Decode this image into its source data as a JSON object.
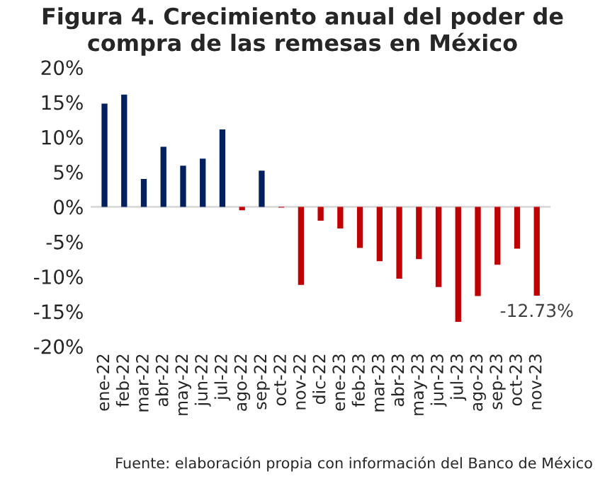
{
  "chart_data": {
    "type": "bar",
    "title": "Figura 4. Crecimiento anual del poder de compra de las remesas en México",
    "categories": [
      "ene-22",
      "feb-22",
      "mar-22",
      "abr-22",
      "may-22",
      "jun-22",
      "jul-22",
      "ago-22",
      "sep-22",
      "oct-22",
      "nov-22",
      "dic-22",
      "ene-23",
      "feb-23",
      "mar-23",
      "abr-23",
      "may-23",
      "jun-23",
      "jul-23",
      "ago-23",
      "sep-23",
      "oct-23",
      "nov-23"
    ],
    "values": [
      14.8,
      16.1,
      4.0,
      8.6,
      5.9,
      6.9,
      11.1,
      -0.5,
      5.2,
      -0.1,
      -11.2,
      -2.0,
      -3.1,
      -5.9,
      -7.8,
      -10.3,
      -7.5,
      -11.5,
      -16.5,
      -12.8,
      -8.3,
      -6.0,
      -12.73
    ],
    "colors": [
      "#002060",
      "#002060",
      "#002060",
      "#002060",
      "#002060",
      "#002060",
      "#002060",
      "#c00000",
      "#002060",
      "#c00000",
      "#c00000",
      "#c00000",
      "#c00000",
      "#c00000",
      "#c00000",
      "#c00000",
      "#c00000",
      "#c00000",
      "#c00000",
      "#c00000",
      "#c00000",
      "#c00000",
      "#c00000"
    ],
    "ylim": [
      -20,
      20
    ],
    "yticks": [
      {
        "value": -20,
        "label": "-20%"
      },
      {
        "value": -15,
        "label": "-15%"
      },
      {
        "value": -10,
        "label": "-10%"
      },
      {
        "value": -5,
        "label": "-5%"
      },
      {
        "value": 0,
        "label": "0%"
      },
      {
        "value": 5,
        "label": "5%"
      },
      {
        "value": 10,
        "label": "10%"
      },
      {
        "value": 15,
        "label": "15%"
      },
      {
        "value": 20,
        "label": "20%"
      }
    ],
    "value_labels": [
      null,
      null,
      null,
      null,
      null,
      null,
      null,
      null,
      null,
      null,
      null,
      null,
      null,
      null,
      null,
      null,
      null,
      null,
      null,
      null,
      null,
      null,
      "-12.73%"
    ],
    "ref_lines": [
      {
        "axis": "y",
        "value": 0,
        "color": "#d9d9d9"
      }
    ],
    "grid": false,
    "legend": false,
    "annotations": [
      "Fuente: elaboración propia con información del Banco de México"
    ]
  }
}
